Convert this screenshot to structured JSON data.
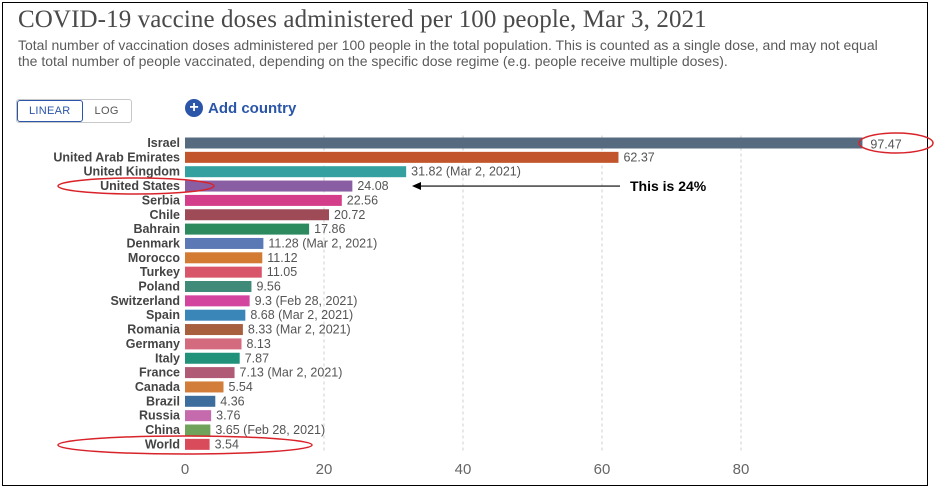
{
  "chart_data": {
    "type": "bar",
    "orientation": "horizontal",
    "title": "COVID-19 vaccine doses administered per 100 people, Mar 3, 2021",
    "subtitle": "Total number of vaccination doses administered per 100 people in the total population. This is counted as a single dose, and may not equal the total number of people vaccinated, depending on the specific dose regime (e.g. people receive multiple doses).",
    "categories": [
      "Israel",
      "United Arab Emirates",
      "United Kingdom",
      "United States",
      "Serbia",
      "Chile",
      "Bahrain",
      "Denmark",
      "Morocco",
      "Turkey",
      "Poland",
      "Switzerland",
      "Spain",
      "Romania",
      "Germany",
      "Italy",
      "France",
      "Canada",
      "Brazil",
      "Russia",
      "China",
      "World"
    ],
    "values": [
      97.47,
      62.37,
      31.82,
      24.08,
      22.56,
      20.72,
      17.86,
      11.28,
      11.12,
      11.05,
      9.56,
      9.3,
      8.68,
      8.33,
      8.13,
      7.87,
      7.13,
      5.54,
      4.36,
      3.76,
      3.65,
      3.54
    ],
    "value_labels": [
      "97.47",
      "62.37",
      "31.82 (Mar 2, 2021)",
      "24.08",
      "22.56",
      "20.72",
      "17.86",
      "11.28 (Mar 2, 2021)",
      "11.12",
      "11.05",
      "9.56",
      "9.3 (Feb 28, 2021)",
      "8.68 (Mar 2, 2021)",
      "8.33 (Mar 2, 2021)",
      "8.13",
      "7.87",
      "7.13 (Mar 2, 2021)",
      "5.54",
      "4.36",
      "3.76",
      "3.65 (Feb 28, 2021)",
      "3.54"
    ],
    "colors": [
      "#566b80",
      "#c2552b",
      "#34a1a0",
      "#8a5ea3",
      "#d43d8a",
      "#9e4a57",
      "#2c8a5e",
      "#5b7ab5",
      "#d37a33",
      "#d9566a",
      "#3f8a78",
      "#d2449e",
      "#3b86b8",
      "#a85f3e",
      "#d46a7e",
      "#21917a",
      "#b05a76",
      "#d27d3a",
      "#3d6d9c",
      "#c46aad",
      "#6fa35c",
      "#d94a5a"
    ],
    "xlim": [
      0,
      100
    ],
    "xticks": [
      0,
      20,
      40,
      60,
      80
    ],
    "xlabel": "",
    "ylabel": "",
    "grid": "vertical dotted",
    "annotations": [
      {
        "text": "This is 24%",
        "target": "United States"
      }
    ],
    "highlights": [
      "Israel value label",
      "United States",
      "World"
    ]
  },
  "controls": {
    "linear_label": "LINEAR",
    "log_label": "LOG",
    "add_country_label": "Add country"
  },
  "colors": {
    "accent": "#2a55a8",
    "highlight_ring": "#d8232a"
  }
}
